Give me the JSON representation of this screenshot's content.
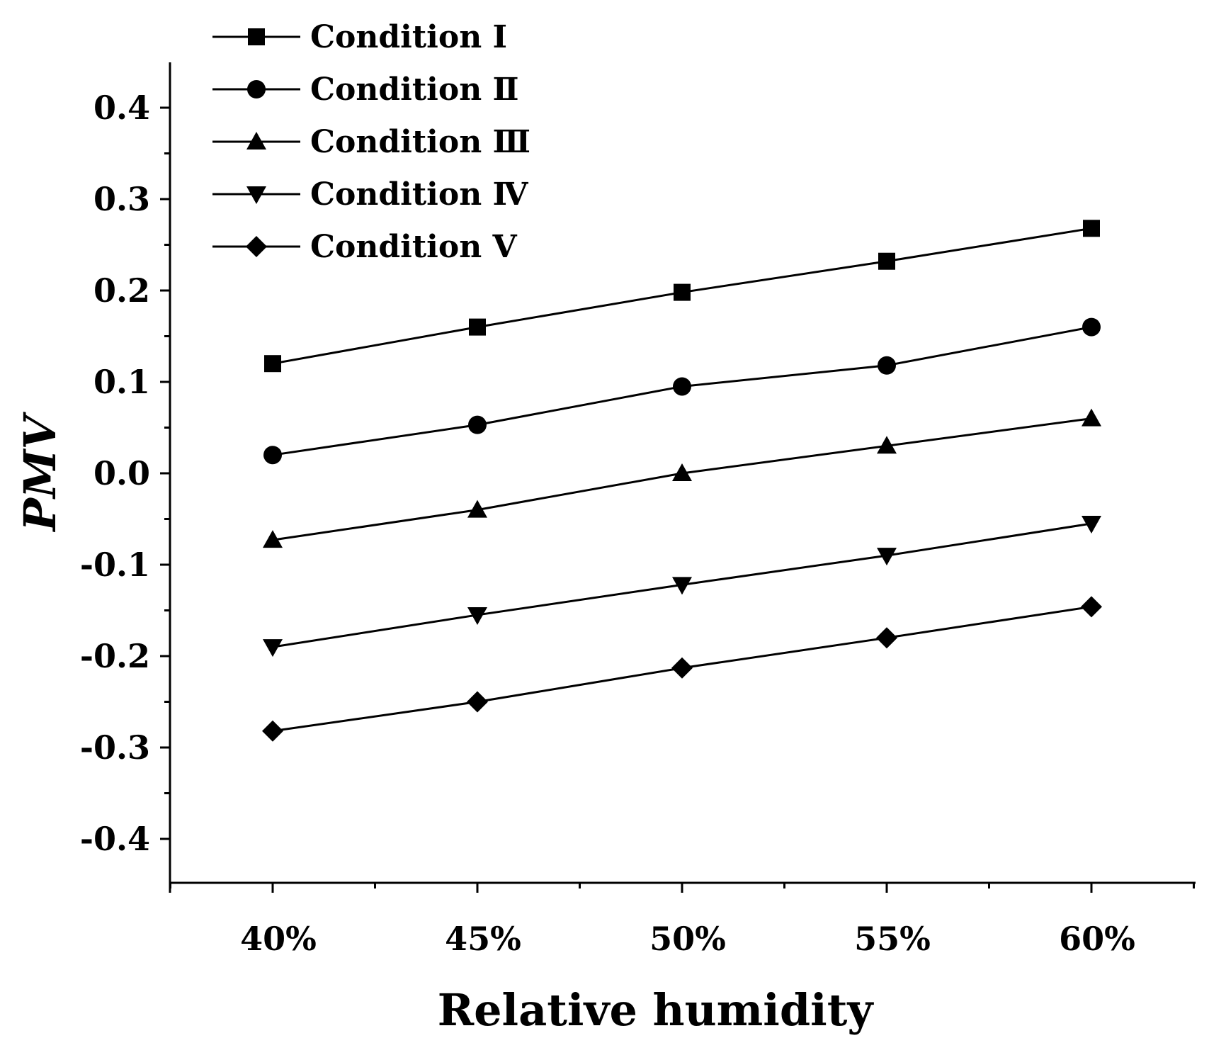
{
  "chart_data": {
    "type": "line",
    "title": "",
    "xlabel": "Relative humidity",
    "ylabel": "PMV",
    "categories": [
      "40%",
      "45%",
      "50%",
      "55%",
      "60%"
    ],
    "ylim": [
      -0.45,
      0.45
    ],
    "yticks": [
      -0.4,
      -0.3,
      -0.2,
      -0.1,
      0.0,
      0.1,
      0.2,
      0.3,
      0.4
    ],
    "ytick_labels": [
      "-0.4",
      "-0.3",
      "-0.2",
      "-0.1",
      "0.0",
      "0.1",
      "0.2",
      "0.3",
      "0.4"
    ],
    "grid": false,
    "legend_position": "top-left",
    "line_color": "#000000",
    "series": [
      {
        "name": "Condition Ⅰ",
        "marker": "square",
        "values": [
          0.12,
          0.16,
          0.198,
          0.232,
          0.268
        ]
      },
      {
        "name": "Condition Ⅱ",
        "marker": "circle",
        "values": [
          0.02,
          0.053,
          0.095,
          0.118,
          0.16
        ]
      },
      {
        "name": "Condition Ⅲ",
        "marker": "triangle-up",
        "values": [
          -0.073,
          -0.04,
          0.0,
          0.03,
          0.06
        ]
      },
      {
        "name": "Condition Ⅳ",
        "marker": "triangle-down",
        "values": [
          -0.19,
          -0.155,
          -0.122,
          -0.09,
          -0.055
        ]
      },
      {
        "name": "Condition Ⅴ",
        "marker": "diamond",
        "values": [
          -0.282,
          -0.25,
          -0.213,
          -0.18,
          -0.146
        ]
      }
    ]
  }
}
